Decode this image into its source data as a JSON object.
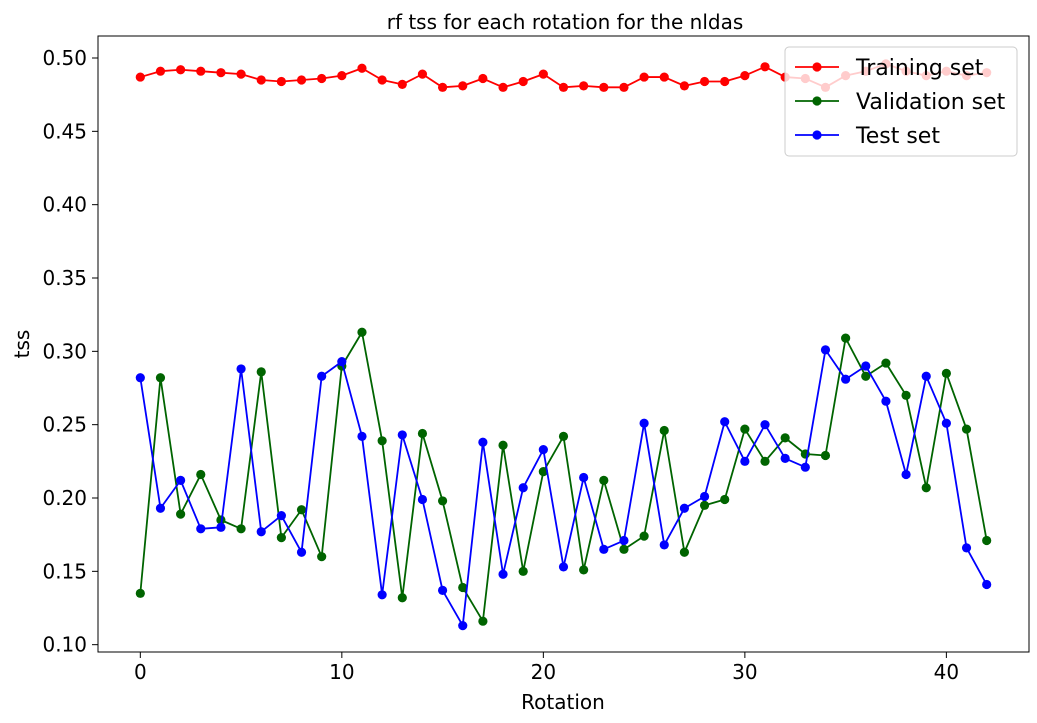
{
  "chart_data": {
    "type": "line",
    "title": "rf tss for each rotation for the nldas",
    "xlabel": "Rotation",
    "ylabel": "tss",
    "xlim": [
      -2.1,
      44.1
    ],
    "ylim": [
      0.095,
      0.515
    ],
    "xticks": [
      0,
      10,
      20,
      30,
      40
    ],
    "xtick_labels": [
      "0",
      "10",
      "20",
      "30",
      "40"
    ],
    "yticks": [
      0.1,
      0.15,
      0.2,
      0.25,
      0.3,
      0.35,
      0.4,
      0.45,
      0.5
    ],
    "ytick_labels": [
      "0.10",
      "0.15",
      "0.20",
      "0.25",
      "0.30",
      "0.35",
      "0.40",
      "0.45",
      "0.50"
    ],
    "grid": false,
    "legend_position": "top-right",
    "x": [
      0,
      1,
      2,
      3,
      4,
      5,
      6,
      7,
      8,
      9,
      10,
      11,
      12,
      13,
      14,
      15,
      16,
      17,
      18,
      19,
      20,
      21,
      22,
      23,
      24,
      25,
      26,
      27,
      28,
      29,
      30,
      31,
      32,
      33,
      34,
      35,
      36,
      37,
      38,
      39,
      40,
      41,
      42
    ],
    "series": [
      {
        "name": "Training set",
        "color": "#ff0000",
        "values": [
          0.487,
          0.491,
          0.492,
          0.491,
          0.49,
          0.489,
          0.485,
          0.484,
          0.485,
          0.486,
          0.488,
          0.493,
          0.485,
          0.482,
          0.489,
          0.48,
          0.481,
          0.486,
          0.48,
          0.484,
          0.489,
          0.48,
          0.481,
          0.48,
          0.48,
          0.487,
          0.487,
          0.481,
          0.484,
          0.484,
          0.488,
          0.494,
          0.487,
          0.486,
          0.48,
          0.488,
          0.491,
          0.496,
          0.491,
          0.488,
          0.491,
          0.488,
          0.49
        ]
      },
      {
        "name": "Validation set",
        "color": "#006400",
        "values": [
          0.135,
          0.282,
          0.189,
          0.216,
          0.185,
          0.179,
          0.286,
          0.173,
          0.192,
          0.16,
          0.29,
          0.313,
          0.239,
          0.132,
          0.244,
          0.198,
          0.139,
          0.116,
          0.236,
          0.15,
          0.218,
          0.242,
          0.151,
          0.212,
          0.165,
          0.174,
          0.246,
          0.163,
          0.195,
          0.199,
          0.247,
          0.225,
          0.241,
          0.23,
          0.229,
          0.309,
          0.283,
          0.292,
          0.27,
          0.207,
          0.285,
          0.247,
          0.171
        ]
      },
      {
        "name": "Test set",
        "color": "#0000ff",
        "values": [
          0.282,
          0.193,
          0.212,
          0.179,
          0.18,
          0.288,
          0.177,
          0.188,
          0.163,
          0.283,
          0.293,
          0.242,
          0.134,
          0.243,
          0.199,
          0.137,
          0.113,
          0.238,
          0.148,
          0.207,
          0.233,
          0.153,
          0.214,
          0.165,
          0.171,
          0.251,
          0.168,
          0.193,
          0.201,
          0.252,
          0.225,
          0.25,
          0.227,
          0.221,
          0.301,
          0.281,
          0.29,
          0.266,
          0.216,
          0.283,
          0.251,
          0.166,
          0.141
        ]
      }
    ]
  }
}
